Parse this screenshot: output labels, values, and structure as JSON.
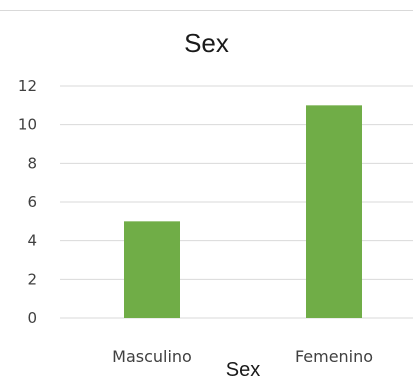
{
  "chart_data": {
    "type": "bar",
    "title": "Sex",
    "xlabel": "Sex",
    "ylabel": "",
    "categories": [
      "Masculino",
      "Femenino"
    ],
    "values": [
      5,
      11
    ],
    "ylim": [
      0,
      12
    ],
    "yticks": [
      0,
      2,
      4,
      6,
      8,
      10,
      12
    ],
    "grid": true,
    "bar_color": "#70ad47",
    "grid_color": "#d9d9d9"
  }
}
